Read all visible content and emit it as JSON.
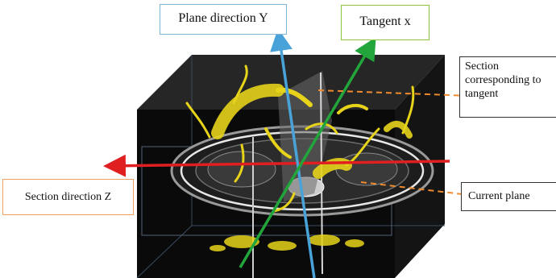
{
  "labels": {
    "plane_direction_y": "Plane direction Y",
    "tangent_x": "Tangent x",
    "section_tangent": "Section corresponding to tangent",
    "current_plane": "Current plane",
    "section_direction_z": "Section direction Z"
  },
  "colors": {
    "axis_y": "#4aa3d8",
    "axis_x": "#22a53a",
    "axis_z": "#e02020",
    "leader": "#ef8a2e",
    "box_y_border": "#7fb3d5",
    "box_x_border": "#8cc63f",
    "box_z_border": "#f0a060",
    "vessel": "#e6d31a",
    "volume_front": "#0a0a0a",
    "volume_top": "#2a2a2a",
    "volume_side": "#161616"
  }
}
